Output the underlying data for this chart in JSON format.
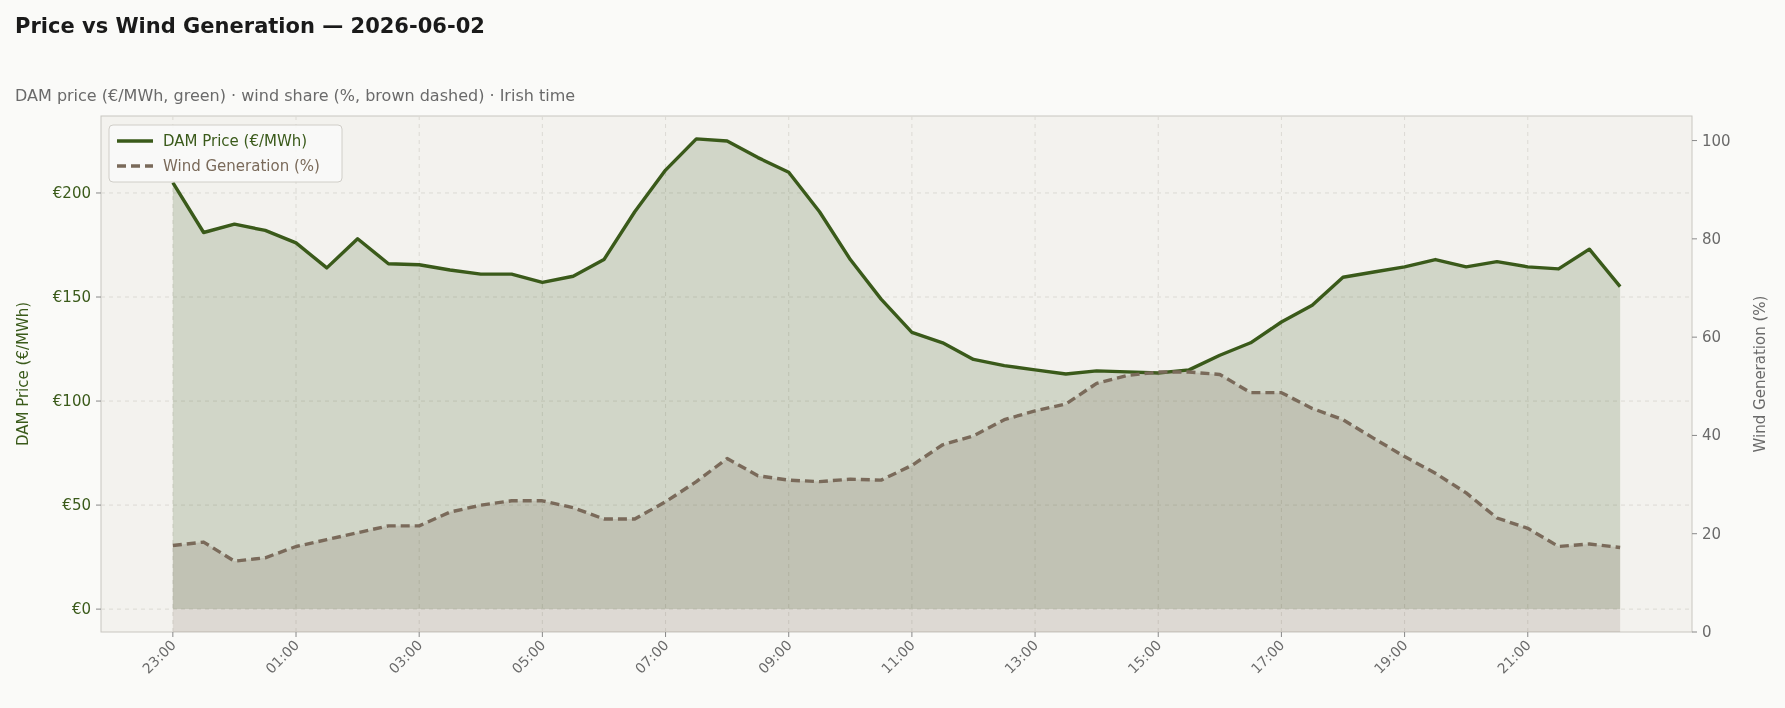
{
  "chart_data": {
    "type": "area",
    "title": "Price vs Wind Generation — 2026-06-02",
    "subtitle": "DAM price (€/MWh, green)  ·  wind share (%, brown dashed)  ·  Irish time",
    "ylabel": "DAM Price (€/MWh)",
    "y2label": "Wind Generation (%)",
    "x": [
      "2026-06-01T23:00",
      "2026-06-01T23:30",
      "2026-06-02T00:00",
      "2026-06-02T00:30",
      "2026-06-02T01:00",
      "2026-06-02T01:30",
      "2026-06-02T02:00",
      "2026-06-02T02:30",
      "2026-06-02T03:00",
      "2026-06-02T03:30",
      "2026-06-02T04:00",
      "2026-06-02T04:30",
      "2026-06-02T05:00",
      "2026-06-02T05:30",
      "2026-06-02T06:00",
      "2026-06-02T06:30",
      "2026-06-02T07:00",
      "2026-06-02T07:30",
      "2026-06-02T08:00",
      "2026-06-02T08:30",
      "2026-06-02T09:00",
      "2026-06-02T09:30",
      "2026-06-02T10:00",
      "2026-06-02T10:30",
      "2026-06-02T11:00",
      "2026-06-02T11:30",
      "2026-06-02T12:00",
      "2026-06-02T12:30",
      "2026-06-02T13:00",
      "2026-06-02T13:30",
      "2026-06-02T14:00",
      "2026-06-02T14:30",
      "2026-06-02T15:00",
      "2026-06-02T15:30",
      "2026-06-02T16:00",
      "2026-06-02T16:30",
      "2026-06-02T17:00",
      "2026-06-02T17:30",
      "2026-06-02T18:00",
      "2026-06-02T18:30",
      "2026-06-02T19:00",
      "2026-06-02T19:30",
      "2026-06-02T20:00",
      "2026-06-02T20:30",
      "2026-06-02T21:00",
      "2026-06-02T21:30",
      "2026-06-02T22:00",
      "2026-06-02T22:30"
    ],
    "series": [
      {
        "name": "DAM Price (€/MWh)",
        "color": "#3a5a1a",
        "line_style": "solid",
        "values": [
          205,
          181,
          185,
          182,
          176,
          164,
          178,
          166,
          165.5,
          163,
          161,
          161,
          157,
          160,
          168,
          191,
          211,
          226,
          225,
          217,
          210,
          191,
          168,
          149,
          133,
          128,
          120,
          117,
          115,
          113,
          114.5,
          114,
          113.5,
          115,
          122,
          128,
          138,
          146,
          159.5,
          162,
          164.5,
          168,
          164.5,
          167,
          164.5,
          163.5,
          173,
          155
        ]
      },
      {
        "name": "Wind Generation (%)",
        "color": "#7a6a5a",
        "line_style": "dashed",
        "axis": "y2",
        "values": [
          17.6,
          18.3,
          14.4,
          15.1,
          17.4,
          18.8,
          20.2,
          21.6,
          21.6,
          24.4,
          25.8,
          26.7,
          26.7,
          25.3,
          23,
          23,
          26.5,
          30.6,
          35.3,
          31.8,
          30.9,
          30.6,
          31.1,
          30.9,
          33.9,
          38.1,
          39.9,
          43.2,
          45,
          46.4,
          50.6,
          52.2,
          52.9,
          52.9,
          52.4,
          48.7,
          48.7,
          45.5,
          43.2,
          39.4,
          35.7,
          32.3,
          28.3,
          23.2,
          21.1,
          17.4,
          17.9,
          17.2
        ]
      }
    ],
    "xlim": [
      "2026-06-01T21:50",
      "2026-06-02T23:40"
    ],
    "xticks": [
      {
        "value": "2026-06-01T23:00",
        "label": "23:00"
      },
      {
        "value": "2026-06-02T01:00",
        "label": "01:00"
      },
      {
        "value": "2026-06-02T03:00",
        "label": "03:00"
      },
      {
        "value": "2026-06-02T05:00",
        "label": "05:00"
      },
      {
        "value": "2026-06-02T07:00",
        "label": "07:00"
      },
      {
        "value": "2026-06-02T09:00",
        "label": "09:00"
      },
      {
        "value": "2026-06-02T11:00",
        "label": "11:00"
      },
      {
        "value": "2026-06-02T13:00",
        "label": "13:00"
      },
      {
        "value": "2026-06-02T15:00",
        "label": "15:00"
      },
      {
        "value": "2026-06-02T17:00",
        "label": "17:00"
      },
      {
        "value": "2026-06-02T19:00",
        "label": "19:00"
      },
      {
        "value": "2026-06-02T21:00",
        "label": "21:00"
      }
    ],
    "ylim": [
      -11,
      237
    ],
    "yticks": [
      {
        "value": 0,
        "label": "€0"
      },
      {
        "value": 50,
        "label": "€50"
      },
      {
        "value": 100,
        "label": "€100"
      },
      {
        "value": 150,
        "label": "€150"
      },
      {
        "value": 200,
        "label": "€200"
      }
    ],
    "y2lim": [
      0,
      105
    ],
    "y2ticks": [
      0,
      20,
      40,
      60,
      80,
      100
    ],
    "grid": true,
    "legend": "top left"
  }
}
